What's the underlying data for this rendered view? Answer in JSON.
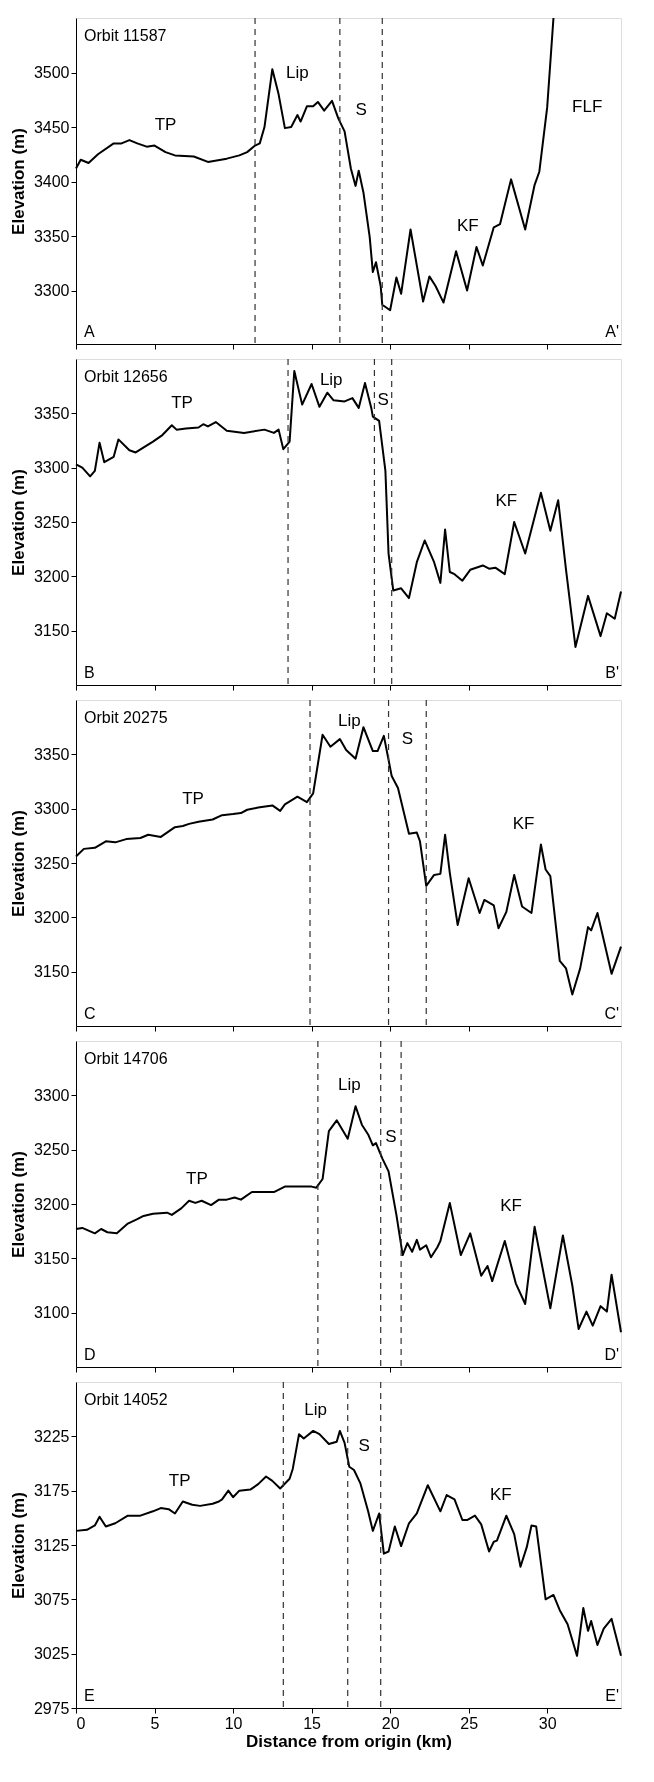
{
  "chart_data": [
    {
      "type": "line",
      "title": "Orbit 11587",
      "ylabel": "Elevation (m)",
      "xlim": [
        0,
        34.7
      ],
      "xticks": [
        0,
        5,
        10,
        15,
        20,
        25,
        30
      ],
      "ylim": [
        3251,
        3550
      ],
      "yticks": [
        3300,
        3350,
        3400,
        3450,
        3500
      ],
      "tick_labels": "y",
      "x": [
        0,
        0.3,
        0.8,
        1.4,
        2.4,
        2.9,
        3.4,
        3.9,
        4.5,
        5.0,
        5.7,
        6.3,
        7.5,
        8.4,
        9.6,
        10.4,
        10.9,
        11.4,
        11.7,
        12.0,
        12.5,
        12.9,
        13.3,
        13.7,
        14.1,
        14.3,
        14.7,
        15.1,
        15.4,
        15.8,
        16.3,
        16.7,
        17.1,
        17.5,
        17.8,
        18.0,
        18.3,
        18.7,
        18.9,
        19.1,
        19.4,
        19.5,
        20.0,
        20.4,
        20.7,
        21.3,
        22.1,
        22.5,
        22.9,
        23.4,
        24.2,
        24.9,
        25.5,
        25.9,
        26.6,
        27.0,
        27.7,
        28.6,
        29.2,
        29.5,
        30.0,
        30.4
      ],
      "series": [
        {
          "color": "#000000",
          "values": [
            3412,
            3420,
            3417,
            3425,
            3435,
            3435,
            3438,
            3435,
            3432,
            3433,
            3427,
            3424,
            3423,
            3418,
            3421,
            3424,
            3427,
            3433,
            3435,
            3450,
            3503,
            3480,
            3449,
            3450,
            3461,
            3455,
            3469,
            3469,
            3473,
            3465,
            3474,
            3458,
            3446,
            3412,
            3396,
            3410,
            3390,
            3349,
            3317,
            3326,
            3304,
            3287,
            3282,
            3312,
            3297,
            3356,
            3290,
            3313,
            3304,
            3289,
            3336,
            3300,
            3340,
            3323,
            3358,
            3361,
            3402,
            3356,
            3397,
            3409,
            3468,
            3550
          ]
        }
      ],
      "ref_lines": [
        {
          "axis": "x",
          "value": 11.4,
          "color": "#333333",
          "line_style": "dashed"
        },
        {
          "axis": "x",
          "value": 16.8,
          "color": "#333333",
          "line_style": "dashed"
        },
        {
          "axis": "x",
          "value": 19.5,
          "color": "#333333",
          "line_style": "dashed"
        }
      ],
      "annotations": [
        "A",
        "A'",
        "TP",
        "Lip",
        "S",
        "KF",
        "FLF"
      ]
    },
    {
      "type": "line",
      "title": "Orbit 12656",
      "ylabel": "Elevation (m)",
      "xlim": [
        0,
        34.7
      ],
      "xticks": [
        0,
        5,
        10,
        15,
        20,
        25,
        30
      ],
      "ylim": [
        3100,
        3400
      ],
      "yticks": [
        3150,
        3200,
        3250,
        3300,
        3350
      ],
      "tick_labels": "y",
      "x": [
        0,
        0.4,
        0.9,
        1.2,
        1.5,
        1.8,
        2.4,
        2.7,
        3.4,
        3.8,
        4.9,
        5.5,
        6.1,
        6.4,
        7.0,
        7.8,
        8.1,
        8.4,
        8.9,
        9.6,
        10.7,
        12.0,
        12.6,
        12.9,
        13.2,
        13.6,
        13.9,
        14.4,
        15.0,
        15.5,
        16.0,
        16.4,
        17.1,
        17.6,
        18.0,
        18.4,
        18.8,
        18.9,
        19.3,
        19.7,
        19.9,
        20.2,
        20.7,
        21.2,
        21.7,
        22.2,
        22.8,
        23.2,
        23.5,
        23.8,
        24.1,
        24.6,
        25.1,
        25.9,
        26.3,
        26.7,
        27.3,
        27.9,
        28.6,
        29.6,
        30.2,
        30.7,
        31.2,
        31.8,
        32.6,
        33.4,
        33.8,
        34.3,
        34.7
      ],
      "series": [
        {
          "color": "#000000",
          "values": [
            3303,
            3300,
            3292,
            3297,
            3323,
            3305,
            3310,
            3326,
            3316,
            3314,
            3324,
            3330,
            3339,
            3335,
            3336,
            3337,
            3340,
            3338,
            3342,
            3334,
            3332,
            3335,
            3332,
            3335,
            3317,
            3324,
            3389,
            3358,
            3377,
            3356,
            3369,
            3362,
            3361,
            3364,
            3355,
            3378,
            3355,
            3347,
            3343,
            3297,
            3221,
            3187,
            3189,
            3180,
            3213,
            3233,
            3213,
            3194,
            3243,
            3204,
            3202,
            3196,
            3206,
            3210,
            3207,
            3208,
            3202,
            3250,
            3221,
            3277,
            3242,
            3270,
            3206,
            3135,
            3182,
            3145,
            3166,
            3161,
            3186
          ]
        }
      ],
      "ref_lines": [
        {
          "axis": "x",
          "value": 13.5,
          "color": "#333333",
          "line_style": "dashed"
        },
        {
          "axis": "x",
          "value": 19.0,
          "color": "#333333",
          "line_style": "dashed"
        },
        {
          "axis": "x",
          "value": 20.1,
          "color": "#333333",
          "line_style": "dashed"
        }
      ],
      "annotations": [
        "B",
        "B'",
        "TP",
        "Lip",
        "S",
        "KF"
      ]
    },
    {
      "type": "line",
      "title": "Orbit 20275",
      "ylabel": "Elevation (m)",
      "xlim": [
        0,
        34.7
      ],
      "xticks": [
        0,
        5,
        10,
        15,
        20,
        25,
        30
      ],
      "ylim": [
        3100,
        3400
      ],
      "yticks": [
        3150,
        3200,
        3250,
        3300,
        3350
      ],
      "tick_labels": "y",
      "x": [
        0,
        0.5,
        1.2,
        1.9,
        2.5,
        3.2,
        4.1,
        4.6,
        5.4,
        6.3,
        6.8,
        7.2,
        7.8,
        8.7,
        9.3,
        10.0,
        10.5,
        10.9,
        11.6,
        12.5,
        13.0,
        13.3,
        14.1,
        14.7,
        15.1,
        15.7,
        16.2,
        16.8,
        17.2,
        17.8,
        18.3,
        18.9,
        19.2,
        19.6,
        19.9,
        20.1,
        20.5,
        21.2,
        21.7,
        21.9,
        22.3,
        22.8,
        23.2,
        23.5,
        23.8,
        24.3,
        25.0,
        25.7,
        26.0,
        26.6,
        26.9,
        27.4,
        27.9,
        28.4,
        29.0,
        29.6,
        29.9,
        30.2,
        30.8,
        31.2,
        31.6,
        32.1,
        32.6,
        32.8,
        33.2,
        34.1,
        34.7
      ],
      "series": [
        {
          "color": "#000000",
          "values": [
            3256,
            3263,
            3264,
            3270,
            3269,
            3272,
            3273,
            3276,
            3274,
            3283,
            3284,
            3286,
            3288,
            3290,
            3294,
            3295,
            3296,
            3299,
            3301,
            3303,
            3298,
            3304,
            3311,
            3306,
            3314,
            3368,
            3357,
            3364,
            3354,
            3346,
            3375,
            3353,
            3353,
            3367,
            3345,
            3330,
            3319,
            3277,
            3278,
            3270,
            3229,
            3239,
            3240,
            3276,
            3241,
            3193,
            3236,
            3204,
            3216,
            3211,
            3190,
            3205,
            3239,
            3210,
            3204,
            3267,
            3244,
            3238,
            3160,
            3153,
            3129,
            3153,
            3191,
            3188,
            3204,
            3148,
            3173
          ]
        }
      ],
      "ref_lines": [
        {
          "axis": "x",
          "value": 14.9,
          "color": "#333333",
          "line_style": "dashed"
        },
        {
          "axis": "x",
          "value": 19.9,
          "color": "#333333",
          "line_style": "dashed"
        },
        {
          "axis": "x",
          "value": 22.3,
          "color": "#333333",
          "line_style": "dashed"
        }
      ],
      "annotations": [
        "C",
        "C'",
        "TP",
        "Lip",
        "S",
        "KF"
      ]
    },
    {
      "type": "line",
      "title": "Orbit 14706",
      "ylabel": "Elevation (m)",
      "xlim": [
        0,
        34.7
      ],
      "xticks": [
        0,
        5,
        10,
        15,
        20,
        25,
        30
      ],
      "ylim": [
        3050,
        3350
      ],
      "yticks": [
        3100,
        3150,
        3200,
        3250,
        3300
      ],
      "tick_labels": "y",
      "x": [
        0,
        0.4,
        1.2,
        1.6,
        2.0,
        2.6,
        3.3,
        3.9,
        4.3,
        4.9,
        5.8,
        6.1,
        6.7,
        7.2,
        7.6,
        8.0,
        8.6,
        9.1,
        9.6,
        10.1,
        10.5,
        11.2,
        12.0,
        12.6,
        13.3,
        14.3,
        15.0,
        15.3,
        15.7,
        16.1,
        16.6,
        17.3,
        17.8,
        18.2,
        18.6,
        18.9,
        19.1,
        19.5,
        19.9,
        20.4,
        20.8,
        21.1,
        21.4,
        21.7,
        21.9,
        22.3,
        22.6,
        23.0,
        23.2,
        23.8,
        24.5,
        25.1,
        25.8,
        26.2,
        26.5,
        27.3,
        28.0,
        28.6,
        29.2,
        30.2,
        31.0,
        31.6,
        32.0,
        32.5,
        32.9,
        33.4,
        33.8,
        34.1,
        34.7
      ],
      "series": [
        {
          "color": "#000000",
          "values": [
            3177,
            3178,
            3173,
            3177,
            3174,
            3173,
            3182,
            3186,
            3189,
            3191,
            3192,
            3190,
            3196,
            3203,
            3201,
            3203,
            3199,
            3204,
            3204,
            3206,
            3204,
            3211,
            3211,
            3211,
            3216,
            3216,
            3216,
            3215,
            3223,
            3267,
            3277,
            3260,
            3290,
            3273,
            3264,
            3254,
            3256,
            3242,
            3230,
            3190,
            3153,
            3164,
            3156,
            3167,
            3158,
            3162,
            3151,
            3160,
            3166,
            3201,
            3153,
            3173,
            3134,
            3143,
            3129,
            3166,
            3127,
            3108,
            3179,
            3104,
            3171,
            3125,
            3085,
            3101,
            3088,
            3106,
            3101,
            3135,
            3082
          ]
        }
      ],
      "ref_lines": [
        {
          "axis": "x",
          "value": 15.4,
          "color": "#333333",
          "line_style": "dashed"
        },
        {
          "axis": "x",
          "value": 19.4,
          "color": "#333333",
          "line_style": "dashed"
        },
        {
          "axis": "x",
          "value": 20.7,
          "color": "#333333",
          "line_style": "dashed"
        }
      ],
      "annotations": [
        "D",
        "D'",
        "TP",
        "Lip",
        "S",
        "KF"
      ]
    },
    {
      "type": "line",
      "title": "Orbit 14052",
      "ylabel": "Elevation (m)",
      "xlabel": "Distance from  origin (km)",
      "xlim": [
        0,
        34.7
      ],
      "xticks": [
        0,
        5,
        10,
        15,
        20,
        25,
        30
      ],
      "ylim": [
        2975,
        3275
      ],
      "yticks": [
        2975,
        3025,
        3075,
        3125,
        3175,
        3225
      ],
      "x": [
        0,
        0.7,
        1.2,
        1.5,
        1.9,
        2.5,
        3.3,
        4.1,
        4.9,
        5.4,
        5.9,
        6.3,
        6.8,
        7.4,
        7.9,
        8.7,
        9.1,
        9.3,
        9.7,
        10.0,
        10.4,
        11.1,
        11.6,
        12.1,
        12.5,
        13.0,
        13.6,
        13.8,
        14.2,
        14.5,
        15.1,
        15.5,
        16.1,
        16.6,
        16.8,
        17.1,
        17.4,
        17.7,
        18.1,
        18.6,
        18.9,
        19.3,
        19.6,
        19.9,
        20.3,
        20.7,
        21.2,
        21.7,
        22.4,
        23.2,
        23.6,
        24.1,
        24.6,
        24.9,
        25.4,
        25.8,
        26.3,
        26.6,
        26.8,
        27.4,
        27.9,
        28.3,
        28.7,
        29.0,
        29.3,
        29.9,
        30.4,
        30.8,
        31.3,
        31.9,
        32.3,
        32.6,
        32.8,
        33.2,
        33.6,
        34.1,
        34.7
      ],
      "series": [
        {
          "color": "#000000",
          "values": [
            3138,
            3139,
            3143,
            3151,
            3142,
            3145,
            3152,
            3152,
            3156,
            3159,
            3158,
            3154,
            3165,
            3162,
            3161,
            3163,
            3165,
            3167,
            3175,
            3169,
            3175,
            3176,
            3181,
            3188,
            3184,
            3177,
            3186,
            3195,
            3227,
            3223,
            3230,
            3227,
            3218,
            3220,
            3230,
            3219,
            3197,
            3194,
            3182,
            3156,
            3138,
            3154,
            3117,
            3119,
            3142,
            3124,
            3145,
            3154,
            3180,
            3156,
            3171,
            3167,
            3148,
            3148,
            3152,
            3144,
            3119,
            3128,
            3129,
            3152,
            3135,
            3105,
            3123,
            3143,
            3142,
            3075,
            3079,
            3065,
            3052,
            3023,
            3067,
            3046,
            3055,
            3033,
            3048,
            3057,
            3023
          ]
        }
      ],
      "ref_lines": [
        {
          "axis": "x",
          "value": 13.2,
          "color": "#333333",
          "line_style": "dashed"
        },
        {
          "axis": "x",
          "value": 17.3,
          "color": "#333333",
          "line_style": "dashed"
        },
        {
          "axis": "x",
          "value": 19.4,
          "color": "#333333",
          "line_style": "dashed"
        }
      ],
      "annotations": [
        "E",
        "E'",
        "TP",
        "Lip",
        "S",
        "KF"
      ]
    }
  ]
}
